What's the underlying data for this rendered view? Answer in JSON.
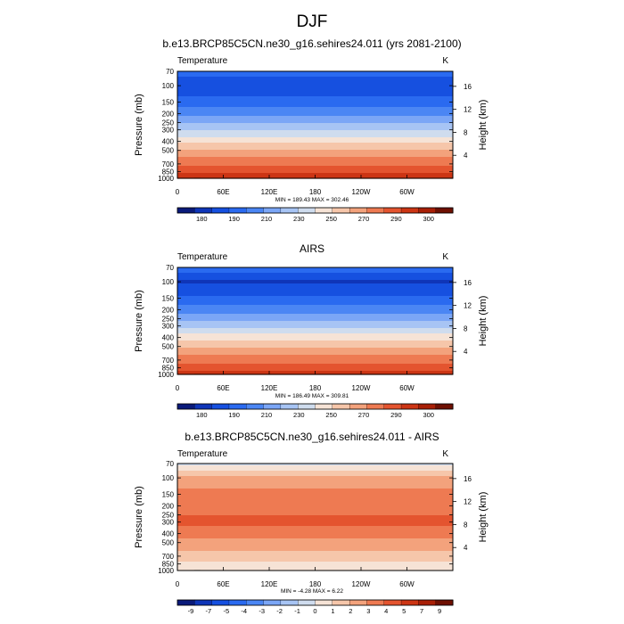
{
  "page_title": "DJF",
  "panels": [
    {
      "title": "b.e13.BRCP85C5CN.ne30_g16.sehires24.011 (yrs 2081-2100)",
      "left_label": "Temperature",
      "units": "K",
      "minmax": "MIN = 189.43   MAX = 302.46",
      "colorbar_labels": [
        "180",
        "190",
        "210",
        "230",
        "250",
        "270",
        "290",
        "300"
      ],
      "colorbar_colors": [
        "#0a1a7a",
        "#0f35b8",
        "#1650e0",
        "#2a6af0",
        "#4b86f4",
        "#7ba6f6",
        "#a7c4f4",
        "#cfdcee",
        "#f6e3d6",
        "#f6c6aa",
        "#f3a27c",
        "#ee7a52",
        "#e4542f",
        "#cc3514",
        "#a81f06",
        "#6e1002"
      ]
    },
    {
      "title": "AIRS",
      "left_label": "Temperature",
      "units": "K",
      "minmax": "MIN = 186.49   MAX = 309.81",
      "colorbar_labels": [
        "180",
        "190",
        "210",
        "230",
        "250",
        "270",
        "290",
        "300"
      ],
      "colorbar_colors": [
        "#0a1a7a",
        "#0f35b8",
        "#1650e0",
        "#2a6af0",
        "#4b86f4",
        "#7ba6f6",
        "#a7c4f4",
        "#cfdcee",
        "#f6e3d6",
        "#f6c6aa",
        "#f3a27c",
        "#ee7a52",
        "#e4542f",
        "#cc3514",
        "#a81f06",
        "#6e1002"
      ]
    },
    {
      "title": "b.e13.BRCP85C5CN.ne30_g16.sehires24.011 - AIRS",
      "left_label": "Temperature",
      "units": "K",
      "minmax": "MIN = -4.28   MAX =  6.22",
      "colorbar_labels": [
        "-9",
        "-7",
        "-5",
        "-4",
        "-3",
        "-2",
        "-1",
        "0",
        "1",
        "2",
        "3",
        "4",
        "5",
        "7",
        "9"
      ],
      "colorbar_colors": [
        "#0a1a7a",
        "#0f35b8",
        "#1650e0",
        "#2a6af0",
        "#4b86f4",
        "#7ba6f6",
        "#a7c4f4",
        "#cfdcee",
        "#f6e3d6",
        "#f6c6aa",
        "#f3a27c",
        "#ee7a52",
        "#e4542f",
        "#cc3514",
        "#a81f06",
        "#6e1002"
      ]
    }
  ],
  "chart_data": [
    {
      "type": "heatmap",
      "title": "b.e13.BRCP85C5CN.ne30_g16.sehires24.011 (yrs 2081-2100)",
      "variable": "Temperature",
      "units": "K",
      "xlabel": "",
      "ylabel": "Pressure (mb)",
      "ylabel_right": "Height (km)",
      "x_tick_labels": [
        "0",
        "60E",
        "120E",
        "180",
        "120W",
        "60W"
      ],
      "x_ticks_deg": [
        0,
        60,
        120,
        180,
        240,
        300
      ],
      "xlim": [
        0,
        360
      ],
      "y_tick_labels": [
        "70",
        "100",
        "150",
        "200",
        "250",
        "300",
        "400",
        "500",
        "700",
        "850",
        "1000"
      ],
      "y_ticks_mb": [
        70,
        100,
        150,
        200,
        250,
        300,
        400,
        500,
        700,
        850,
        1000
      ],
      "ylim_mb": [
        1000,
        70
      ],
      "right_tick_labels": [
        "4",
        "8",
        "12",
        "16"
      ],
      "right_ticks_km": [
        4,
        8,
        12,
        16
      ],
      "contour_levels": [
        175,
        180,
        185,
        190,
        200,
        210,
        220,
        230,
        240,
        250,
        260,
        270,
        280,
        290,
        295,
        300,
        305
      ],
      "profile_levels_mb": [
        70,
        100,
        150,
        200,
        250,
        300,
        400,
        500,
        700,
        850,
        1000
      ],
      "profile_values_K": [
        205,
        192,
        203,
        214,
        224,
        232,
        246,
        257,
        271,
        279,
        287
      ],
      "min": 189.43,
      "max": 302.46
    },
    {
      "type": "heatmap",
      "title": "AIRS",
      "variable": "Temperature",
      "units": "K",
      "xlabel": "",
      "ylabel": "Pressure (mb)",
      "ylabel_right": "Height (km)",
      "x_tick_labels": [
        "0",
        "60E",
        "120E",
        "180",
        "120W",
        "60W"
      ],
      "x_ticks_deg": [
        0,
        60,
        120,
        180,
        240,
        300
      ],
      "xlim": [
        0,
        360
      ],
      "y_tick_labels": [
        "70",
        "100",
        "150",
        "200",
        "250",
        "300",
        "400",
        "500",
        "700",
        "850",
        "1000"
      ],
      "y_ticks_mb": [
        70,
        100,
        150,
        200,
        250,
        300,
        400,
        500,
        700,
        850,
        1000
      ],
      "ylim_mb": [
        1000,
        70
      ],
      "right_tick_labels": [
        "4",
        "8",
        "12",
        "16"
      ],
      "right_ticks_km": [
        4,
        8,
        12,
        16
      ],
      "contour_levels": [
        175,
        180,
        185,
        190,
        200,
        210,
        220,
        230,
        240,
        250,
        260,
        270,
        280,
        290,
        295,
        300,
        305
      ],
      "profile_levels_mb": [
        70,
        100,
        150,
        200,
        250,
        300,
        400,
        500,
        700,
        850,
        1000
      ],
      "profile_values_K": [
        204,
        190,
        201,
        212,
        222,
        230,
        244,
        255,
        269,
        277,
        284
      ],
      "min": 186.49,
      "max": 309.81
    },
    {
      "type": "heatmap",
      "title": "b.e13.BRCP85C5CN.ne30_g16.sehires24.011 - AIRS",
      "variable": "Temperature",
      "units": "K",
      "xlabel": "",
      "ylabel": "Pressure (mb)",
      "ylabel_right": "Height (km)",
      "x_tick_labels": [
        "0",
        "60E",
        "120E",
        "180",
        "120W",
        "60W"
      ],
      "x_ticks_deg": [
        0,
        60,
        120,
        180,
        240,
        300
      ],
      "xlim": [
        0,
        360
      ],
      "y_tick_labels": [
        "70",
        "100",
        "150",
        "200",
        "250",
        "300",
        "400",
        "500",
        "700",
        "850",
        "1000"
      ],
      "y_ticks_mb": [
        70,
        100,
        150,
        200,
        250,
        300,
        400,
        500,
        700,
        850,
        1000
      ],
      "ylim_mb": [
        1000,
        70
      ],
      "right_tick_labels": [
        "4",
        "8",
        "12",
        "16"
      ],
      "right_ticks_km": [
        4,
        8,
        12,
        16
      ],
      "contour_levels": [
        -9,
        -7,
        -5,
        -4,
        -3,
        -2,
        -1,
        0,
        1,
        2,
        3,
        4,
        5,
        7,
        9
      ],
      "profile_levels_mb": [
        70,
        100,
        150,
        200,
        250,
        300,
        400,
        500,
        700,
        850,
        1000
      ],
      "profile_values_K": [
        -0.5,
        2.5,
        3.8,
        4.1,
        4.5,
        4.9,
        3.6,
        3.2,
        1.6,
        0.8,
        0.6
      ],
      "min": -4.28,
      "max": 6.22
    }
  ]
}
